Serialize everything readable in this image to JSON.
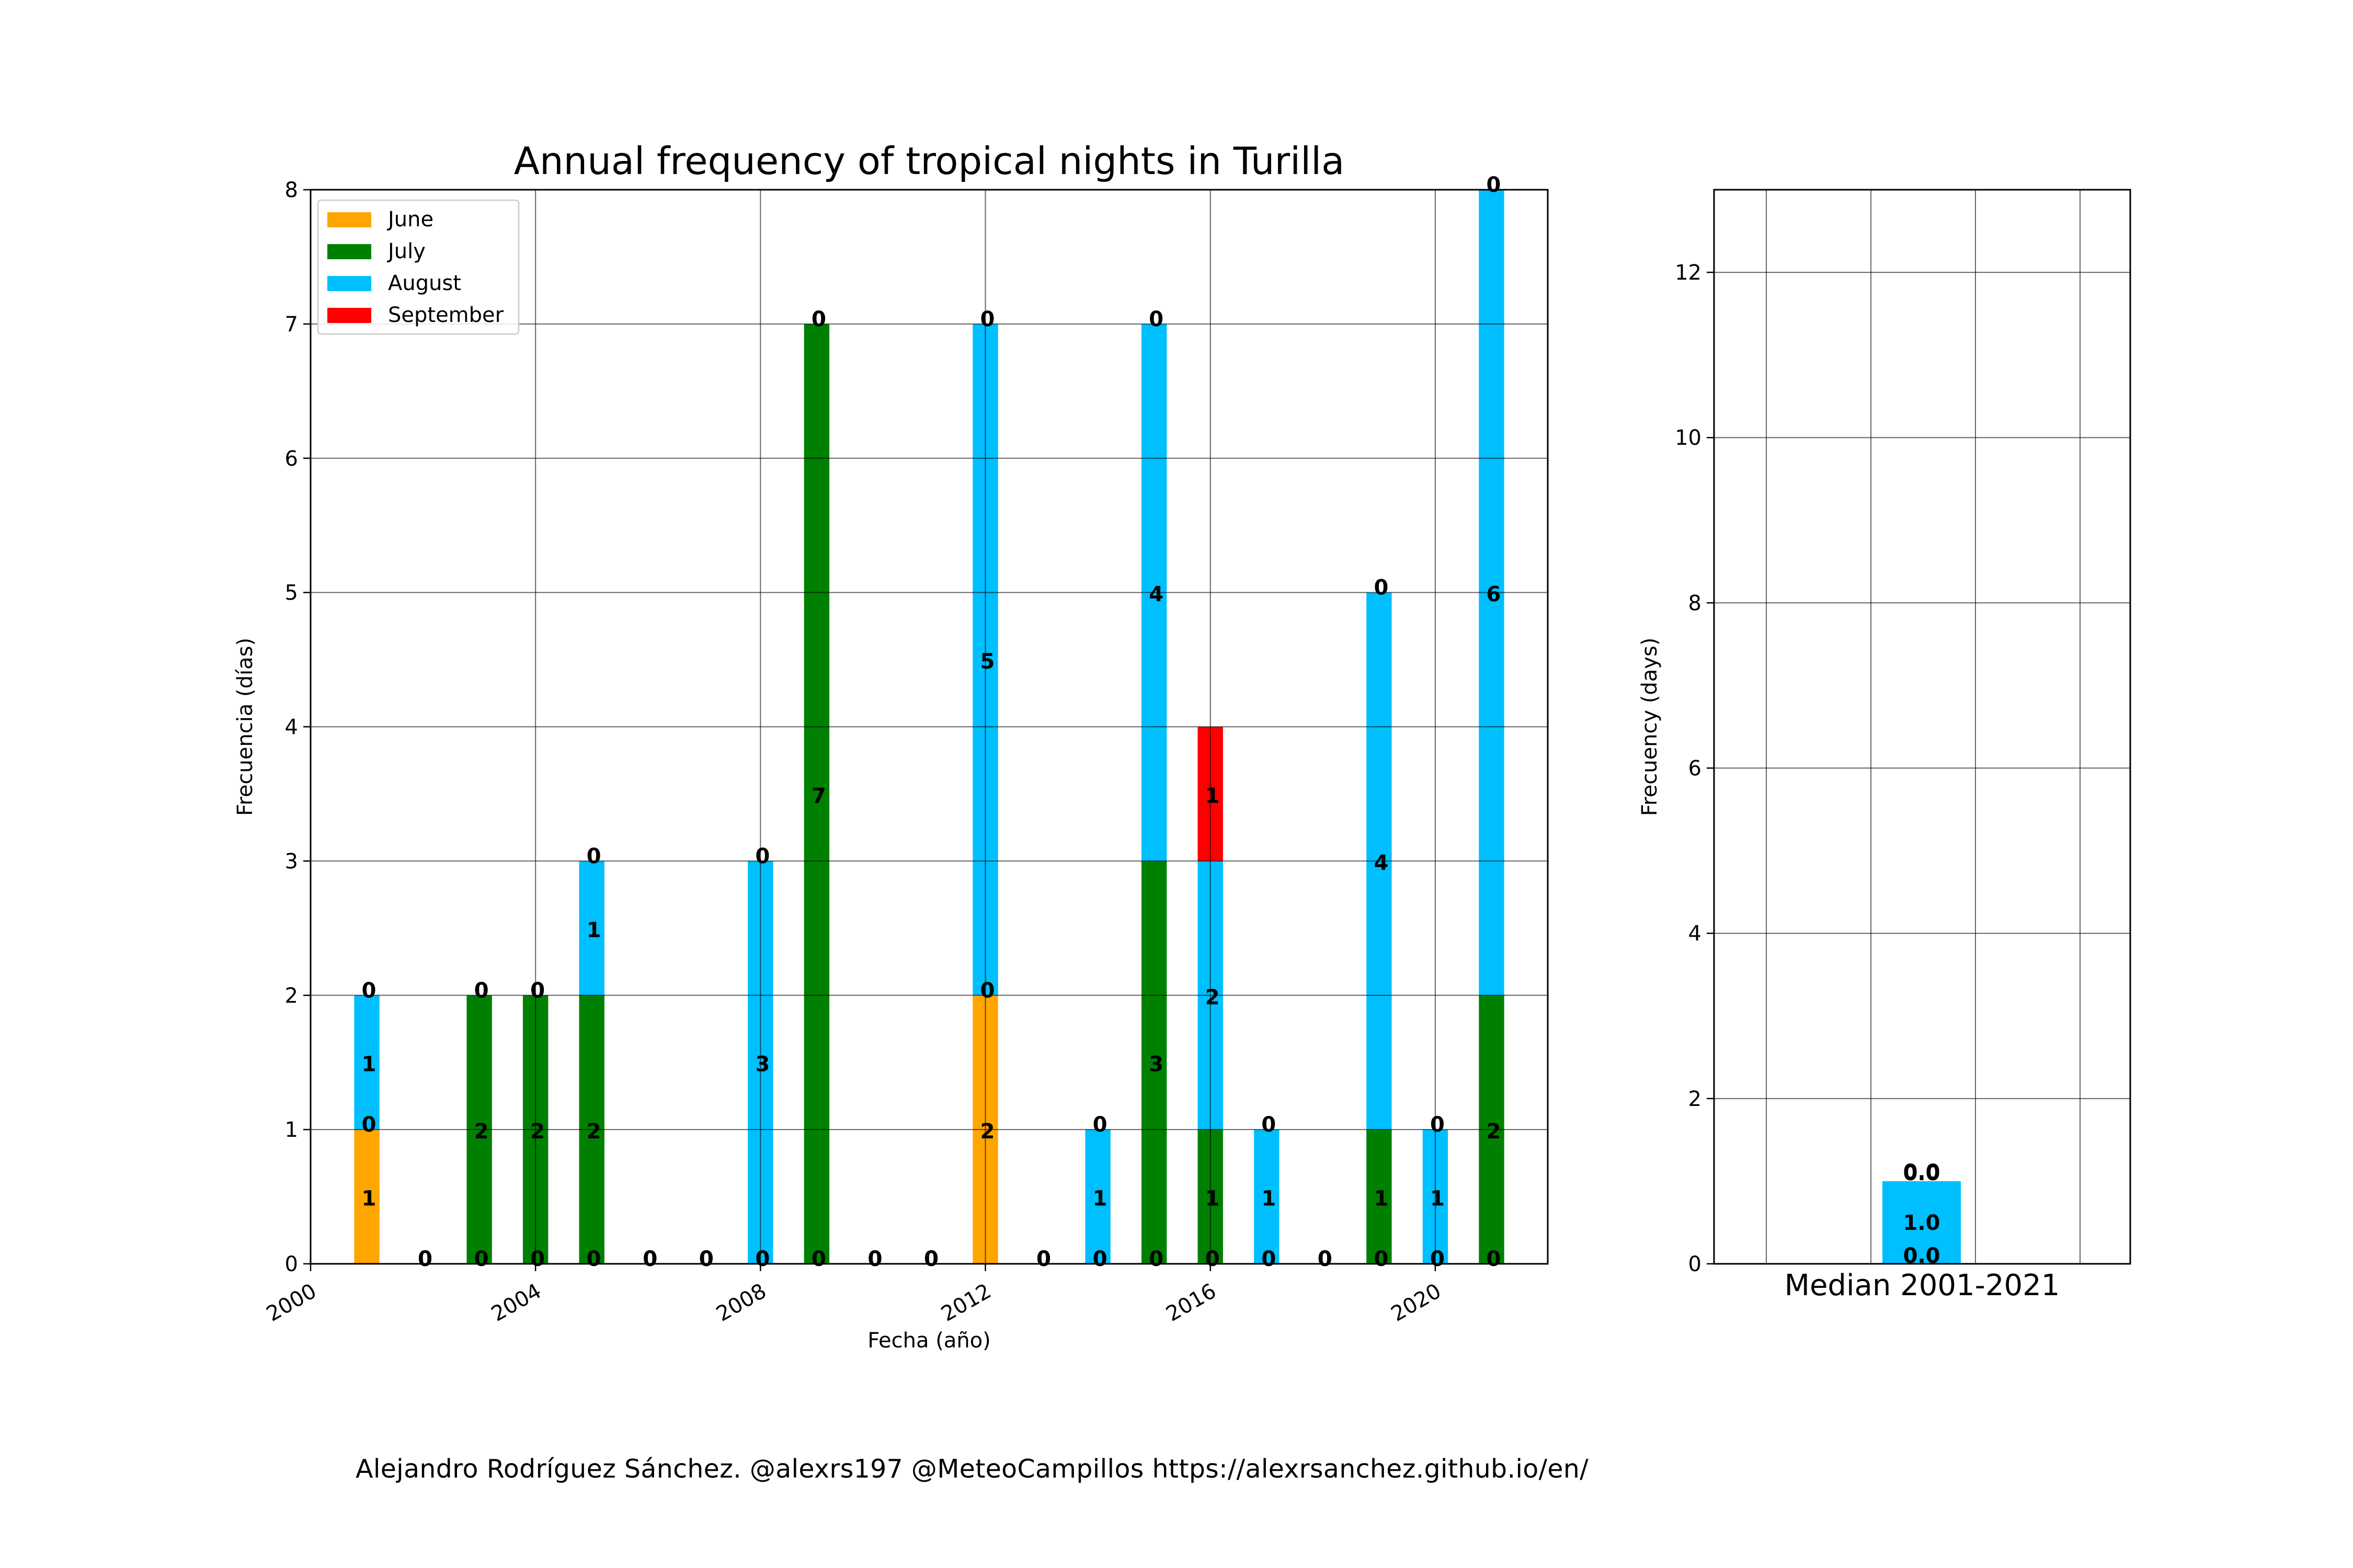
{
  "footer": "Alejandro Rodríguez Sánchez. @alexrs197 @MeteoCampillos   https://alexrsanchez.github.io/en/",
  "chart_data": [
    {
      "type": "bar",
      "stacked": true,
      "title": "Annual frequency of tropical nights in Turilla",
      "xlabel": "Fecha (año)",
      "ylabel": "Frecuencia (días)",
      "xlim": [
        2000,
        2022
      ],
      "ylim": [
        0,
        8
      ],
      "xticks": [
        "2000",
        "2004",
        "2008",
        "2012",
        "2016",
        "2020"
      ],
      "yticks": [
        "0",
        "1",
        "2",
        "3",
        "4",
        "5",
        "6",
        "7",
        "8"
      ],
      "grid": true,
      "legend_position": "top-left",
      "x": [
        2001,
        2002,
        2003,
        2004,
        2005,
        2006,
        2007,
        2008,
        2009,
        2010,
        2011,
        2012,
        2013,
        2014,
        2015,
        2016,
        2017,
        2018,
        2019,
        2020,
        2021
      ],
      "series": [
        {
          "name": "June",
          "color": "#FFA500",
          "values": [
            1,
            0,
            0,
            0,
            0,
            0,
            0,
            0,
            0,
            0,
            0,
            2,
            0,
            0,
            0,
            0,
            0,
            0,
            0,
            0,
            0
          ]
        },
        {
          "name": "July",
          "color": "#008000",
          "values": [
            0,
            0,
            2,
            2,
            2,
            0,
            0,
            0,
            7,
            0,
            0,
            0,
            0,
            0,
            3,
            1,
            0,
            0,
            1,
            0,
            2
          ]
        },
        {
          "name": "August",
          "color": "#00BFFF",
          "values": [
            1,
            0,
            0,
            0,
            1,
            0,
            0,
            3,
            0,
            0,
            0,
            5,
            0,
            1,
            4,
            2,
            1,
            0,
            4,
            1,
            6
          ]
        },
        {
          "name": "September",
          "color": "#FF0000",
          "values": [
            0,
            0,
            0,
            0,
            0,
            0,
            0,
            0,
            0,
            0,
            0,
            0,
            0,
            0,
            0,
            1,
            0,
            0,
            0,
            0,
            0
          ]
        }
      ]
    },
    {
      "type": "bar",
      "stacked": true,
      "xlabel": "Median 2001-2021",
      "ylabel": "Frecuency (days)",
      "ylim": [
        0,
        13
      ],
      "yticks": [
        "0",
        "2",
        "4",
        "6",
        "8",
        "10",
        "12"
      ],
      "grid": true,
      "series": [
        {
          "color": "#FFA500",
          "value": 0.0,
          "label": "0.0"
        },
        {
          "color": "#008000",
          "value": 0.0,
          "label": "0.0"
        },
        {
          "color": "#00BFFF",
          "value": 1.0,
          "label": "1.0"
        },
        {
          "color": "#FF0000",
          "value": 0.0,
          "label": "0.0"
        }
      ]
    }
  ]
}
